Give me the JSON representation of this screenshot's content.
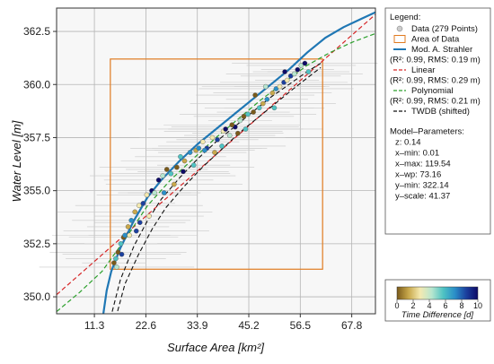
{
  "chart_data": {
    "type": "scatter",
    "xlabel": "Surface Area [km²]",
    "ylabel": "Water Level [m]",
    "xlim": [
      3.0,
      73.0
    ],
    "ylim": [
      349.2,
      363.6
    ],
    "x_ticks": [
      11.3,
      22.6,
      33.9,
      45.2,
      56.5,
      67.8
    ],
    "x_tick_labels": [
      "11.3",
      "22.6",
      "33.9",
      "45.2",
      "56.5",
      "67.8"
    ],
    "y_ticks": [
      350.0,
      352.5,
      355.0,
      357.5,
      360.0,
      362.5
    ],
    "y_tick_labels": [
      "350.0",
      "352.5",
      "355.0",
      "357.5",
      "360.0",
      "362.5"
    ],
    "grid": true,
    "data_area": {
      "x_min": 14.8,
      "x_max": 61.4,
      "y_min": 351.3,
      "y_max": 361.2
    },
    "series": [
      {
        "name": "Data (279 Points)",
        "kind": "scatter",
        "point_count": 279,
        "points": [
          [
            15.6,
            351.6
          ],
          [
            16.0,
            351.8
          ],
          [
            16.5,
            352.1
          ],
          [
            17.1,
            352.5
          ],
          [
            17.7,
            352.8
          ],
          [
            18.0,
            352.9
          ],
          [
            18.7,
            353.3
          ],
          [
            19.4,
            353.6
          ],
          [
            20.2,
            354.0
          ],
          [
            21.3,
            353.5
          ],
          [
            21.1,
            354.3
          ],
          [
            22.0,
            354.4
          ],
          [
            22.8,
            354.8
          ],
          [
            23.9,
            355.0
          ],
          [
            24.5,
            354.9
          ],
          [
            25.4,
            355.5
          ],
          [
            26.3,
            355.7
          ],
          [
            27.2,
            356.0
          ],
          [
            28.1,
            355.8
          ],
          [
            29.4,
            356.1
          ],
          [
            30.2,
            356.6
          ],
          [
            31.1,
            356.4
          ],
          [
            32.3,
            356.8
          ],
          [
            33.6,
            356.9
          ],
          [
            34.2,
            357.0
          ],
          [
            35.1,
            357.3
          ],
          [
            36.0,
            357.0
          ],
          [
            37.2,
            357.5
          ],
          [
            38.3,
            357.4
          ],
          [
            39.6,
            357.8
          ],
          [
            40.1,
            357.9
          ],
          [
            41.0,
            357.6
          ],
          [
            42.2,
            358.0
          ],
          [
            43.3,
            358.3
          ],
          [
            44.1,
            358.5
          ],
          [
            45.0,
            358.6
          ],
          [
            46.2,
            358.7
          ],
          [
            47.5,
            358.9
          ],
          [
            48.3,
            359.1
          ],
          [
            49.2,
            359.3
          ],
          [
            50.4,
            359.6
          ],
          [
            51.2,
            359.8
          ],
          [
            52.0,
            359.9
          ],
          [
            52.9,
            360.1
          ],
          [
            53.6,
            360.2
          ],
          [
            54.4,
            360.4
          ],
          [
            55.2,
            360.5
          ],
          [
            55.9,
            360.7
          ],
          [
            56.7,
            360.9
          ],
          [
            57.5,
            361.0
          ],
          [
            58.3,
            360.6
          ],
          [
            46.6,
            359.5
          ],
          [
            44.5,
            357.9
          ],
          [
            42.8,
            357.7
          ],
          [
            39.3,
            357.1
          ],
          [
            37.7,
            356.8
          ],
          [
            35.5,
            356.9
          ],
          [
            28.8,
            355.3
          ],
          [
            26.6,
            354.9
          ],
          [
            23.3,
            353.8
          ],
          [
            20.5,
            353.1
          ],
          [
            19.0,
            352.9
          ],
          [
            17.3,
            352.0
          ],
          [
            16.2,
            351.4
          ],
          [
            30.8,
            355.9
          ],
          [
            48.9,
            359.9
          ],
          [
            53.1,
            360.6
          ],
          [
            50.8,
            358.9
          ],
          [
            41.5,
            358.1
          ],
          [
            33.1,
            356.2
          ]
        ]
      },
      {
        "name": "Mod. A. Strahler",
        "stats": "(R²: 0.99, RMS: 0.19 m)",
        "color": "#1f77b4",
        "x": [
          13.0,
          14.0,
          15.0,
          17.0,
          20.0,
          23.0,
          26.0,
          30.0,
          34.0,
          38.0,
          42.0,
          46.0,
          50.0,
          54.0,
          58.0,
          62.0,
          66.0,
          70.0,
          73.0
        ],
        "y": [
          348.8,
          350.3,
          351.2,
          352.3,
          353.6,
          354.7,
          355.5,
          356.4,
          357.2,
          357.9,
          358.6,
          359.3,
          360.0,
          360.7,
          361.5,
          362.2,
          362.7,
          363.1,
          363.4
        ]
      },
      {
        "name": "Linear",
        "stats": "(R²: 0.99, RMS: 0.29 m)",
        "color": "#d62728",
        "x": [
          3.0,
          73.0
        ],
        "y": [
          350.1,
          363.3
        ]
      },
      {
        "name": "Polynomial",
        "stats": "(R²: 0.99, RMS: 0.21 m)",
        "color": "#2ca02c",
        "x": [
          3.0,
          8.0,
          13.0,
          18.0,
          23.0,
          28.0,
          33.0,
          38.0,
          43.0,
          48.0,
          53.0,
          58.0,
          63.0,
          68.0,
          73.0
        ],
        "y": [
          349.3,
          350.2,
          351.2,
          352.7,
          354.3,
          355.5,
          356.5,
          357.5,
          358.4,
          359.3,
          360.1,
          360.9,
          361.5,
          362.0,
          362.4
        ]
      },
      {
        "name": "TWDB (shifted)",
        "color": "#111111",
        "lines": [
          {
            "x": [
              15.2,
              17.0,
              20.0,
              23.0,
              26.0,
              30.0,
              34.0,
              38.0,
              42.0,
              46.0,
              50.0,
              54.0,
              58.0,
              61.0
            ],
            "y": [
              349.3,
              350.8,
              352.4,
              353.6,
              354.6,
              355.6,
              356.5,
              357.3,
              358.0,
              358.7,
              359.4,
              360.0,
              360.6,
              361.0
            ]
          },
          {
            "name": "",
            "x": [
              16.0,
              18.0,
              21.0,
              24.0,
              27.0,
              31.0,
              35.0,
              39.0,
              43.0,
              47.0,
              51.0,
              55.0,
              58.0,
              61.0
            ],
            "y": [
              349.0,
              350.6,
              352.0,
              353.2,
              354.2,
              355.2,
              356.1,
              356.9,
              357.7,
              358.4,
              359.1,
              359.8,
              360.3,
              360.8
            ]
          }
        ]
      }
    ],
    "legend": {
      "title": "Legend:",
      "entries": [
        {
          "label": "Data (279 Points)",
          "marker": "circle"
        },
        {
          "label": "Area of Data",
          "marker": "rect"
        },
        {
          "label": "Mod. A. Strahler",
          "sub": "(R²: 0.99, RMS: 0.19 m)",
          "marker": "solid-line",
          "color": "#1f77b4"
        },
        {
          "label": "Linear",
          "sub": "(R²: 0.99, RMS: 0.29 m)",
          "marker": "dashed-line",
          "color": "#d62728"
        },
        {
          "label": "Polynomial",
          "sub": "(R²: 0.99, RMS: 0.21 m)",
          "marker": "dashed-line",
          "color": "#2ca02c"
        },
        {
          "label": "TWDB (shifted)",
          "marker": "dashed-line",
          "color": "#111111"
        }
      ],
      "params_title": "Model–Parameters:",
      "params": [
        "z: 0.14",
        "x–min: 0.01",
        "x–max: 119.54",
        "x–wp: 73.16",
        "y–min: 322.14",
        "y–scale: 41.37"
      ],
      "placement": "right"
    },
    "colorbar": {
      "label": "Time Difference [d]",
      "ticks": [
        "0",
        "2",
        "4",
        "6",
        "8",
        "10"
      ],
      "range": [
        0,
        10
      ],
      "colors": [
        "#7a5a1a",
        "#c8a84b",
        "#f4e9b0",
        "#b8e6cf",
        "#4fc3c3",
        "#2a8fc8",
        "#1b3f9e",
        "#0d0a66"
      ]
    },
    "colors": {
      "area_of_data": "#e07b20",
      "plot_background": "#f7f7f7",
      "error_bars": "#c8c8c8"
    }
  }
}
